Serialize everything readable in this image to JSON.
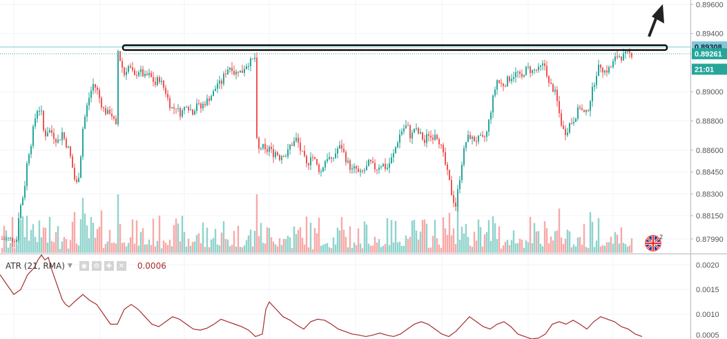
{
  "chart_data": [
    {
      "type": "candlestick",
      "title": "",
      "ylim": [
        0.8789,
        0.8963
      ],
      "price_ticks": [
        "0.89600",
        "0.89400",
        "0.89000",
        "0.88800",
        "0.88600",
        "0.88450",
        "0.88300",
        "0.88150",
        "0.87990"
      ],
      "price_tick_values": [
        0.896,
        0.894,
        0.89,
        0.888,
        0.886,
        0.8845,
        0.883,
        0.8815,
        0.8799
      ],
      "price_labels": [
        {
          "text": "0.89308",
          "value": 0.89308,
          "color": "#7ec7d9"
        },
        {
          "text": "0.89261",
          "value": 0.89261,
          "color": "#26a69a"
        },
        {
          "text": "21:01",
          "value": 0.89155,
          "color": "#26a69a"
        }
      ],
      "close_path_x": [
        0,
        5,
        10,
        15,
        20,
        25,
        27,
        30,
        35,
        40,
        45,
        50,
        55,
        60,
        62,
        65,
        70,
        75,
        80,
        85,
        90,
        95,
        100,
        105,
        110,
        115,
        120,
        125,
        130,
        135,
        140,
        145,
        150,
        155,
        160,
        165,
        170,
        171,
        175,
        180,
        185,
        190,
        195,
        200,
        205,
        210,
        215,
        220,
        225,
        230,
        235,
        240,
        245,
        250,
        255,
        260,
        265,
        270,
        275,
        280,
        285,
        290,
        295,
        300,
        305,
        310,
        315,
        320,
        325,
        330,
        335,
        340,
        345,
        350,
        355,
        360,
        365,
        370,
        371,
        375,
        380,
        385,
        390,
        395,
        400,
        405,
        410,
        415,
        420,
        425,
        430,
        435,
        440,
        445,
        450,
        455,
        460,
        465,
        470,
        475,
        480,
        485,
        490,
        495,
        500,
        505,
        510,
        515,
        520,
        525,
        530,
        535,
        540,
        545,
        550,
        555,
        560,
        565,
        570,
        575,
        580,
        585,
        590,
        595,
        600,
        605,
        610,
        615,
        620,
        625,
        630,
        635,
        640,
        645,
        650,
        655,
        660,
        665,
        670,
        675,
        680,
        685,
        690,
        695,
        700,
        705,
        710,
        715,
        720,
        725,
        730,
        735,
        740,
        745,
        750,
        755,
        760,
        765,
        770,
        775,
        780,
        785,
        790,
        795,
        800,
        805,
        810,
        815,
        820,
        825,
        830,
        835,
        840,
        845,
        850,
        855,
        860,
        865,
        870,
        875,
        880,
        885,
        890,
        895,
        900,
        905,
        910,
        915,
        920,
        925,
        930
      ],
      "close_path_y": [
        0.8799,
        0.8799,
        0.8799,
        0.8799,
        0.8799,
        0.8799,
        0.8815,
        0.8822,
        0.8832,
        0.8855,
        0.8865,
        0.888,
        0.889,
        0.8885,
        0.8875,
        0.887,
        0.8874,
        0.8872,
        0.8868,
        0.8866,
        0.8872,
        0.8865,
        0.886,
        0.8848,
        0.8835,
        0.8845,
        0.8875,
        0.8888,
        0.8898,
        0.8905,
        0.8902,
        0.8894,
        0.8888,
        0.8885,
        0.8887,
        0.888,
        0.8873,
        0.8928,
        0.892,
        0.8912,
        0.8918,
        0.8915,
        0.891,
        0.8915,
        0.8913,
        0.891,
        0.8912,
        0.8909,
        0.8905,
        0.891,
        0.8905,
        0.89,
        0.8892,
        0.8888,
        0.889,
        0.8885,
        0.8887,
        0.8892,
        0.8888,
        0.8886,
        0.8893,
        0.8888,
        0.8892,
        0.8894,
        0.8897,
        0.89,
        0.8906,
        0.8905,
        0.8912,
        0.8916,
        0.8918,
        0.8912,
        0.8915,
        0.8913,
        0.8918,
        0.892,
        0.8921,
        0.8924,
        0.8868,
        0.886,
        0.8863,
        0.8858,
        0.8862,
        0.8857,
        0.8859,
        0.8855,
        0.8858,
        0.8856,
        0.8863,
        0.8865,
        0.8868,
        0.886,
        0.8855,
        0.8848,
        0.8857,
        0.8854,
        0.8848,
        0.8845,
        0.8852,
        0.8856,
        0.8852,
        0.8857,
        0.8862,
        0.8862,
        0.8855,
        0.885,
        0.8846,
        0.8848,
        0.8843,
        0.8845,
        0.8847,
        0.8852,
        0.8849,
        0.8847,
        0.885,
        0.885,
        0.8847,
        0.8852,
        0.8857,
        0.8865,
        0.8872,
        0.8875,
        0.8877,
        0.8868,
        0.8875,
        0.8872,
        0.887,
        0.8865,
        0.8872,
        0.8868,
        0.8872,
        0.8868,
        0.886,
        0.885,
        0.884,
        0.8828,
        0.8822,
        0.8838,
        0.8855,
        0.8866,
        0.887,
        0.8867,
        0.8867,
        0.8868,
        0.8867,
        0.8872,
        0.8885,
        0.8898,
        0.8908,
        0.8905,
        0.8905,
        0.8908,
        0.891,
        0.8912,
        0.8913,
        0.8908,
        0.8915,
        0.8916,
        0.8914,
        0.8915,
        0.8915,
        0.8918,
        0.8918,
        0.8905,
        0.8903,
        0.8898,
        0.8885,
        0.8874,
        0.8872,
        0.8878,
        0.888,
        0.8885,
        0.889,
        0.8885,
        0.8885,
        0.8895,
        0.8905,
        0.8915,
        0.8918,
        0.8914,
        0.8915,
        0.8917,
        0.8922,
        0.8925,
        0.8924,
        0.8925,
        0.8926,
        0.8926
      ],
      "resistance_line": {
        "price": 0.89308,
        "x_from": 178,
        "x_to": 966
      },
      "volume_bars": "approximate, colored by candle direction"
    },
    {
      "type": "line",
      "title": "",
      "indicator": {
        "name": "ATR (21, RMA)",
        "value": "0.0006",
        "color": "#a52a2a"
      },
      "ylim": [
        0.0005,
        0.0022
      ],
      "ticks": [
        "0.0020",
        "0.0015",
        "0.0010",
        "0.0005"
      ],
      "tick_values": [
        0.002,
        0.0015,
        0.001,
        0.0005
      ],
      "x": [
        0,
        10,
        20,
        30,
        40,
        50,
        55,
        60,
        65,
        70,
        75,
        80,
        85,
        90,
        95,
        100,
        110,
        120,
        130,
        140,
        150,
        160,
        170,
        180,
        190,
        200,
        210,
        220,
        230,
        240,
        250,
        260,
        270,
        280,
        290,
        300,
        310,
        320,
        330,
        340,
        350,
        360,
        370,
        380,
        385,
        390,
        400,
        410,
        420,
        430,
        440,
        450,
        460,
        470,
        480,
        490,
        500,
        510,
        520,
        530,
        540,
        550,
        560,
        570,
        580,
        590,
        600,
        610,
        620,
        630,
        640,
        650,
        660,
        670,
        680,
        690,
        700,
        710,
        720,
        730,
        740,
        750,
        760,
        770,
        780,
        790,
        800,
        810,
        820,
        830,
        840,
        850,
        860,
        870,
        880,
        890,
        900,
        910,
        920,
        930
      ],
      "y": [
        0.0018,
        0.0016,
        0.0014,
        0.0015,
        0.0018,
        0.00195,
        0.0021,
        0.0022,
        0.0021,
        0.00215,
        0.0019,
        0.0017,
        0.0015,
        0.0013,
        0.0012,
        0.00115,
        0.00128,
        0.0014,
        0.00128,
        0.0012,
        0.001,
        0.0008,
        0.0008,
        0.0011,
        0.0012,
        0.0011,
        0.00095,
        0.0008,
        0.00075,
        0.00085,
        0.00095,
        0.0009,
        0.0008,
        0.0007,
        0.00068,
        0.00072,
        0.0008,
        0.0009,
        0.00085,
        0.0008,
        0.00075,
        0.00068,
        0.00055,
        0.0006,
        0.0011,
        0.00125,
        0.0011,
        0.00095,
        0.00088,
        0.00078,
        0.0007,
        0.00085,
        0.0009,
        0.00088,
        0.0008,
        0.0007,
        0.00065,
        0.0006,
        0.00058,
        0.00055,
        0.00058,
        0.00062,
        0.00058,
        0.00055,
        0.0006,
        0.0007,
        0.0008,
        0.00085,
        0.0008,
        0.0007,
        0.0006,
        0.00055,
        0.00065,
        0.0008,
        0.00095,
        0.00085,
        0.00075,
        0.0007,
        0.0008,
        0.00085,
        0.00075,
        0.0006,
        0.00055,
        0.0005,
        0.00052,
        0.0006,
        0.0008,
        0.00085,
        0.0008,
        0.00088,
        0.0008,
        0.0007,
        0.00085,
        0.00095,
        0.0009,
        0.00085,
        0.00075,
        0.0007,
        0.0006,
        0.00055
      ]
    }
  ],
  "colors": {
    "up": "#26a69a",
    "down": "#ef5350",
    "up_volume": "#8fd3cc",
    "down_volume": "#f7a9a7",
    "grid": "#f0f3fa"
  }
}
